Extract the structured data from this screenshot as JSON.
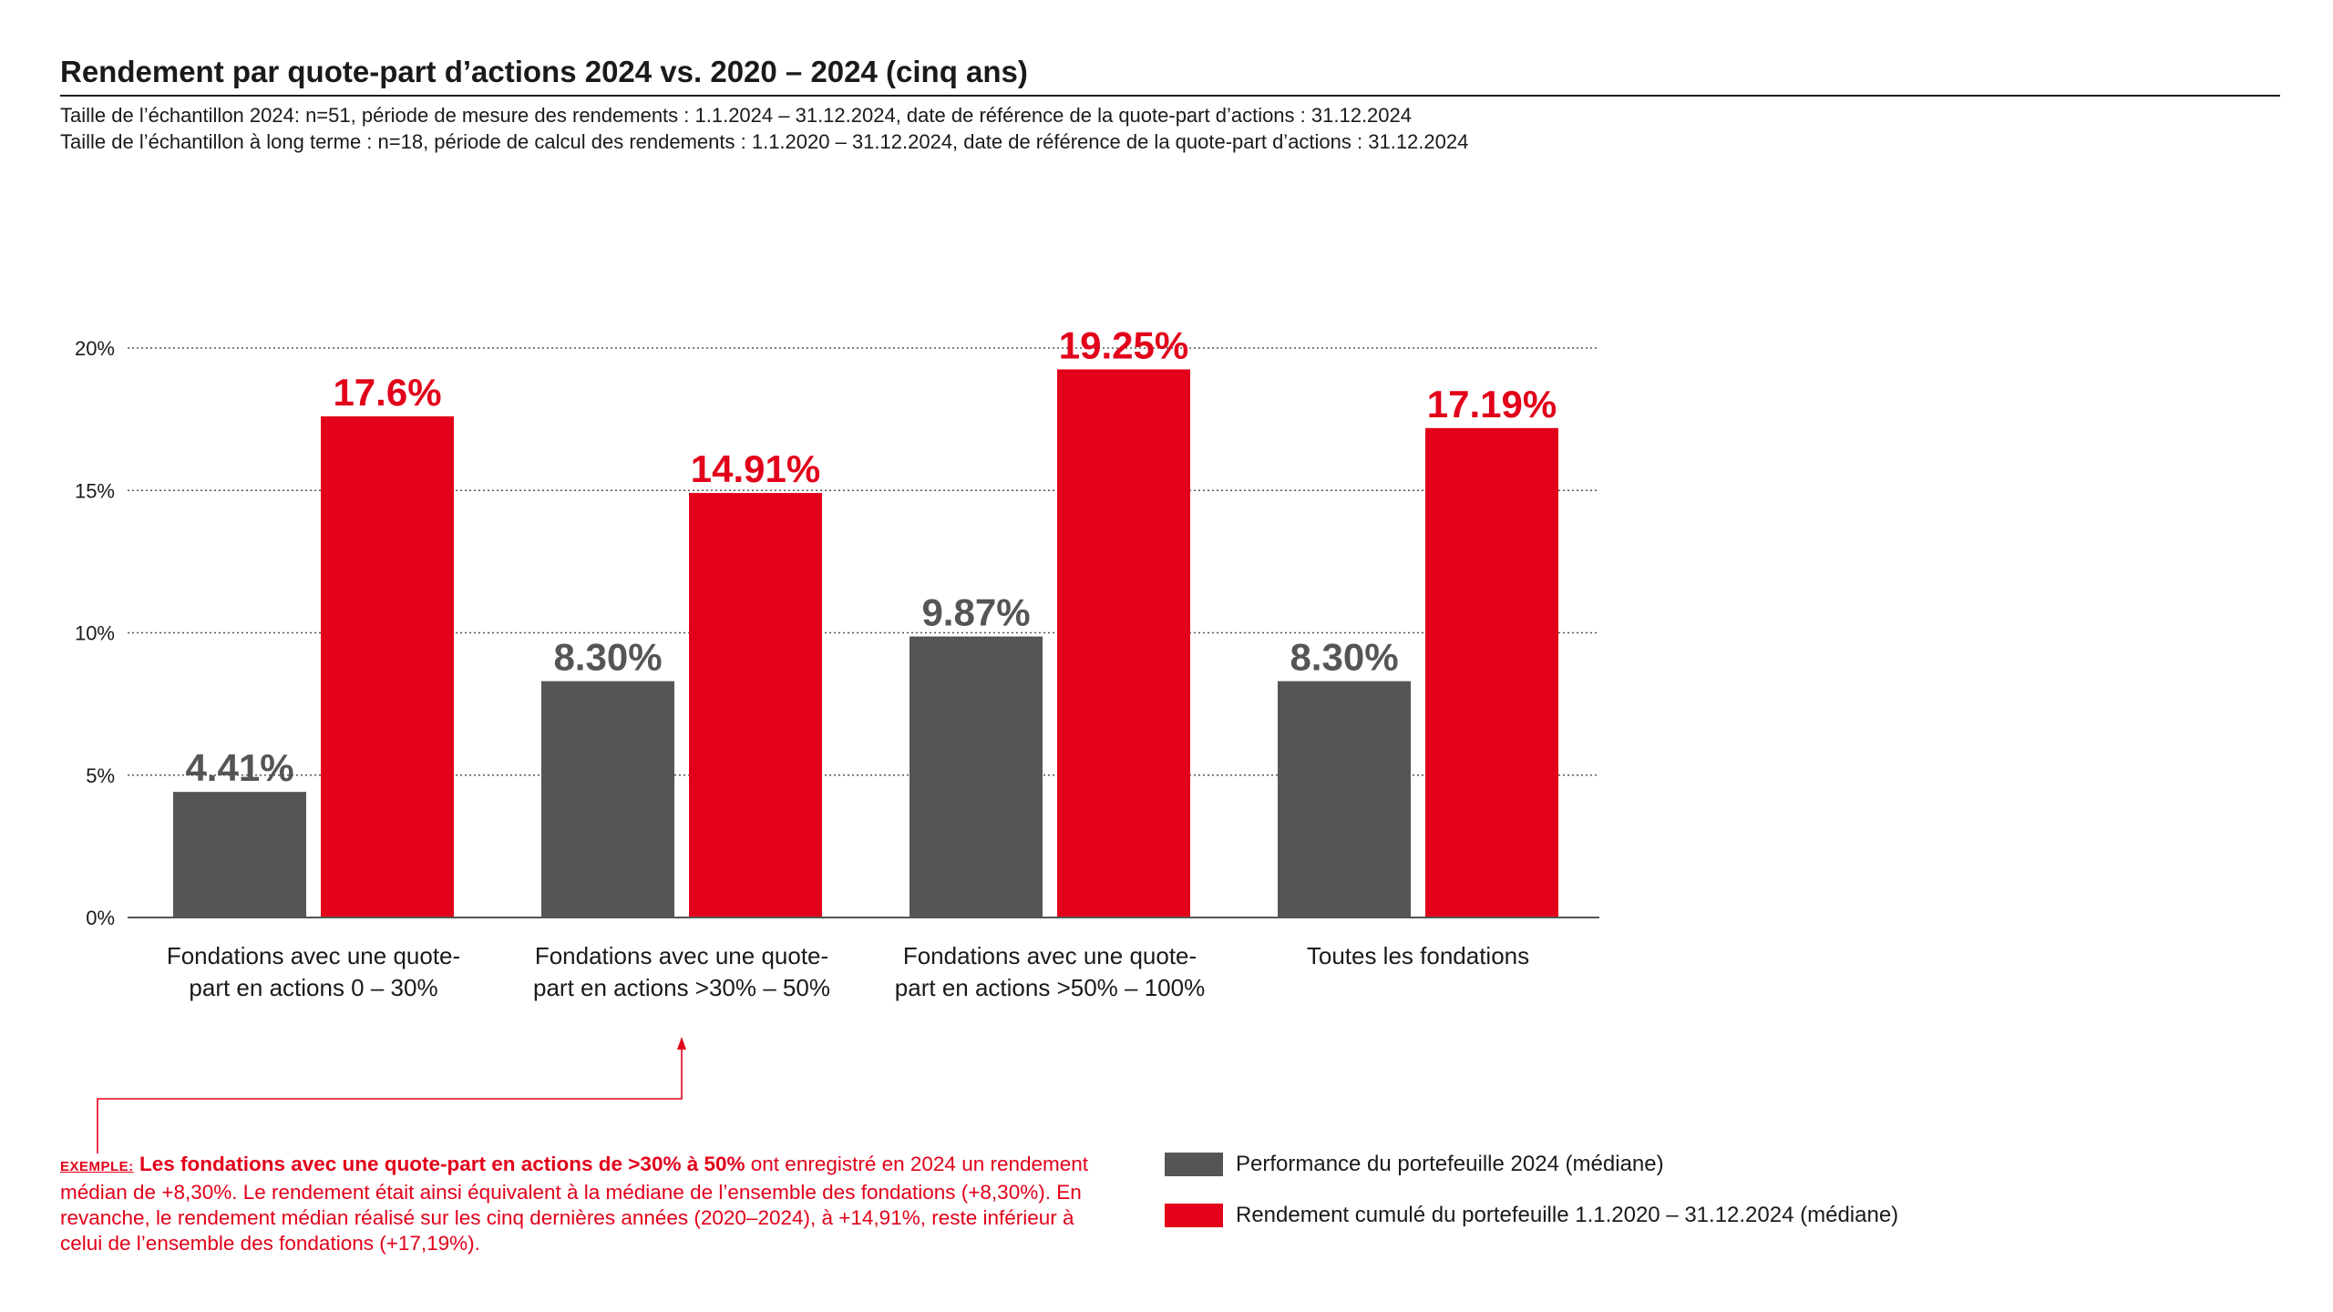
{
  "header": {
    "title": "Rendement par quote-part d’actions 2024 vs. 2020 – 2024 (cinq ans)",
    "subtitle_1": "Taille de l’échantillon 2024: n=51, période de mesure des rendements : 1.1.2024 – 31.12.2024, date de référence de la quote-part d’actions : 31.12.2024",
    "subtitle_2": "Taille de l’échantillon à long terme : n=18, période de calcul des rendements : 1.1.2020 – 31.12.2024, date de référence de la quote-part d’actions : 31.12.2024"
  },
  "colors": {
    "grey": "#555555",
    "red": "#e2001a",
    "text": "#1a1a1a"
  },
  "chart_data": {
    "type": "bar",
    "title": "Rendement par quote-part d’actions 2024 vs. 2020 – 2024 (cinq ans)",
    "xlabel": "",
    "ylabel": "",
    "ylim": [
      0,
      20
    ],
    "yticks": [
      {
        "value": 0,
        "label": "0%"
      },
      {
        "value": 5,
        "label": "5%"
      },
      {
        "value": 10,
        "label": "10%"
      },
      {
        "value": 15,
        "label": "15%"
      },
      {
        "value": 20,
        "label": "20%"
      }
    ],
    "grid": true,
    "legend_position": "bottom-right",
    "categories": [
      [
        "Fondations avec une quote-",
        "part en actions 0 – 30%"
      ],
      [
        "Fondations avec une quote-",
        "part en actions >30% – 50%"
      ],
      [
        "Fondations avec une quote-",
        "part en actions >50% – 100%"
      ],
      [
        "Toutes les fondations"
      ]
    ],
    "series": [
      {
        "name": "Performance du portefeuille 2024 (médiane)",
        "color": "#555555",
        "values": [
          4.41,
          8.3,
          9.87,
          8.3
        ],
        "labels": [
          "4.41%",
          "8.30%",
          "9.87%",
          "8.30%"
        ]
      },
      {
        "name": "Rendement cumulé du portefeuille 1.1.2020 – 31.12.2024 (médiane)",
        "color": "#e2001a",
        "values": [
          17.6,
          14.91,
          19.25,
          17.19
        ],
        "labels": [
          "17.6%",
          "14.91%",
          "19.25%",
          "17.19%"
        ]
      }
    ]
  },
  "note": {
    "prefix": "EXEMPLE:",
    "lead": "Les fondations avec une quote-part en actions de >30% à 50%",
    "body": " ont enregistré en 2024 un rendement médian de +8,30%. Le rendement était ainsi équivalent à la médiane de l’ensemble des fondations (+8,30%). En revanche, le rendement médian réalisé sur les cinq dernières années (2020–2024), à +14,91%, reste inférieur à celui de l’ensemble des fondations (+17,19%)."
  },
  "legend": {
    "items": [
      {
        "label": "Performance du portefeuille 2024 (médiane)"
      },
      {
        "label": "Rendement cumulé du portefeuille 1.1.2020 – 31.12.2024 (médiane)"
      }
    ]
  }
}
